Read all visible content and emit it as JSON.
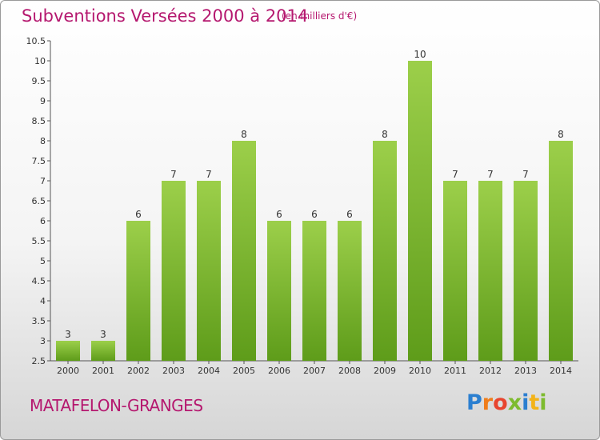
{
  "title": "Subventions Versées 2000 à 2014",
  "subtitle": "(en milliers d'€)",
  "commune": "MATAFELON-GRANGES",
  "logo": {
    "letters": [
      "P",
      "r",
      "o",
      "x",
      "i",
      "t",
      "i"
    ]
  },
  "colors": {
    "title": "#b5186f",
    "bar_top": "#9ccf4a",
    "bar_bottom": "#5e9c1a"
  },
  "chart_data": {
    "type": "bar",
    "categories": [
      "2000",
      "2001",
      "2002",
      "2003",
      "2004",
      "2005",
      "2006",
      "2007",
      "2008",
      "2009",
      "2010",
      "2011",
      "2012",
      "2013",
      "2014"
    ],
    "values": [
      3,
      3,
      6,
      7,
      7,
      8,
      6,
      6,
      6,
      8,
      10,
      7,
      7,
      7,
      8
    ],
    "data_labels": [
      "3",
      "3",
      "6",
      "7",
      "7",
      "8",
      "6",
      "6",
      "6",
      "8",
      "10",
      "7",
      "7",
      "7",
      "8"
    ],
    "ylim": [
      2.5,
      10.5
    ],
    "yticks": [
      "2.5",
      "3",
      "3.5",
      "4",
      "4.5",
      "5",
      "5.5",
      "6",
      "6.5",
      "7",
      "7.5",
      "8",
      "8.5",
      "9",
      "9.5",
      "10",
      "10.5"
    ],
    "grid": false,
    "legend": "none"
  }
}
